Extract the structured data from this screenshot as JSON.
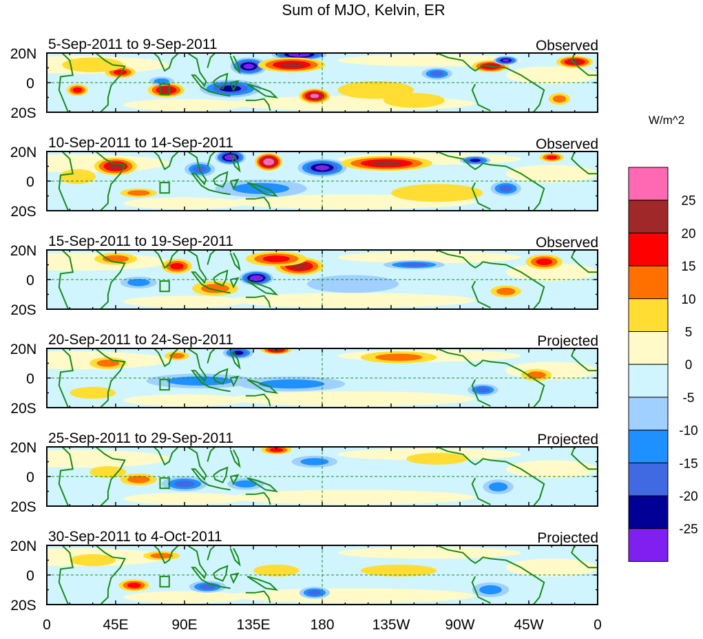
{
  "chart_data": {
    "type": "heatmap",
    "title": "Sum of MJO, Kelvin, ER",
    "colorbar": {
      "unit_label": "W/m^2",
      "tick_labels": [
        "25",
        "20",
        "15",
        "10",
        "5",
        "0",
        "-5",
        "-10",
        "-15",
        "-20",
        "-25"
      ],
      "colors": [
        "#ff69b4",
        "#a02828",
        "#ff0000",
        "#ff7000",
        "#ffdd33",
        "#fffac8",
        "#d0f5ff",
        "#a0d0ff",
        "#1e90ff",
        "#4169e1",
        "#000096",
        "#8020f0"
      ]
    },
    "x_ticks": [
      "0",
      "45E",
      "90E",
      "135E",
      "180",
      "135W",
      "90W",
      "45W",
      "0"
    ],
    "y_ticks": [
      "20N",
      "0",
      "20S"
    ],
    "lon_range": [
      0,
      360
    ],
    "lat_range": [
      -20,
      20
    ],
    "reference_box": {
      "lon": [
        74,
        80
      ],
      "lat": [
        -8,
        -1
      ]
    },
    "panels": [
      {
        "dates": "5-Sep-2011 to 9-Sep-2011",
        "kind": "Observed",
        "anomalies": [
          [
            165,
            19,
            18,
            4,
            -28
          ],
          [
            132,
            11,
            12,
            6,
            -24
          ],
          [
            160,
            12,
            22,
            5,
            18
          ],
          [
            78,
            -5,
            12,
            5,
            17
          ],
          [
            48,
            7,
            10,
            4,
            12
          ],
          [
            175,
            -9,
            10,
            5,
            22
          ],
          [
            20,
            -5,
            7,
            4,
            11
          ],
          [
            290,
            11,
            12,
            4,
            16
          ],
          [
            345,
            14,
            12,
            4,
            17
          ],
          [
            120,
            -4,
            20,
            6,
            -16
          ],
          [
            335,
            -11,
            7,
            4,
            10
          ],
          [
            255,
            6,
            10,
            4,
            -12
          ],
          [
            300,
            15,
            8,
            3,
            -24
          ],
          [
            75,
            1,
            8,
            3,
            -8
          ],
          [
            215,
            -5,
            25,
            6,
            4
          ],
          [
            30,
            12,
            20,
            5,
            4
          ],
          [
            240,
            -12,
            20,
            5,
            4
          ]
        ]
      },
      {
        "dates": "10-Sep-2011 to 14-Sep-2011",
        "kind": "Observed",
        "anomalies": [
          [
            145,
            13,
            9,
            6,
            28
          ],
          [
            180,
            9,
            16,
            6,
            -23
          ],
          [
            120,
            16,
            10,
            5,
            -26
          ],
          [
            45,
            10,
            14,
            6,
            17
          ],
          [
            222,
            12,
            30,
            5,
            16
          ],
          [
            330,
            16,
            8,
            3,
            14
          ],
          [
            100,
            8,
            10,
            5,
            -12
          ],
          [
            300,
            -5,
            10,
            5,
            -12
          ],
          [
            60,
            -8,
            12,
            3,
            10
          ],
          [
            140,
            -5,
            30,
            6,
            -8
          ],
          [
            280,
            14,
            10,
            3,
            -18
          ],
          [
            20,
            3,
            12,
            5,
            5
          ],
          [
            255,
            -8,
            30,
            6,
            4
          ]
        ]
      },
      {
        "dates": "15-Sep-2011 to 19-Sep-2011",
        "kind": "Observed",
        "anomalies": [
          [
            137,
            1,
            11,
            5,
            -28
          ],
          [
            165,
            9,
            16,
            6,
            18
          ],
          [
            150,
            14,
            20,
            5,
            14
          ],
          [
            85,
            9,
            10,
            5,
            12
          ],
          [
            325,
            12,
            12,
            5,
            15
          ],
          [
            240,
            10,
            20,
            3,
            -12
          ],
          [
            60,
            -2,
            12,
            4,
            -8
          ],
          [
            110,
            -6,
            15,
            5,
            10
          ],
          [
            300,
            -8,
            10,
            4,
            8
          ],
          [
            45,
            14,
            14,
            4,
            6
          ],
          [
            200,
            -3,
            30,
            6,
            -5
          ]
        ]
      },
      {
        "dates": "20-Sep-2011 to 24-Sep-2011",
        "kind": "Projected",
        "anomalies": [
          [
            150,
            19,
            10,
            3,
            18
          ],
          [
            125,
            17,
            10,
            4,
            -18
          ],
          [
            100,
            -2,
            35,
            5,
            -10
          ],
          [
            85,
            15,
            8,
            3,
            10
          ],
          [
            40,
            10,
            12,
            4,
            6
          ],
          [
            160,
            -4,
            35,
            5,
            -7
          ],
          [
            285,
            -8,
            10,
            4,
            -12
          ],
          [
            230,
            14,
            25,
            4,
            6
          ],
          [
            320,
            2,
            10,
            4,
            6
          ],
          [
            30,
            -10,
            15,
            4,
            5
          ]
        ]
      },
      {
        "dates": "25-Sep-2011 to 29-Sep-2011",
        "kind": "Projected",
        "anomalies": [
          [
            150,
            18,
            10,
            3,
            12
          ],
          [
            90,
            -5,
            15,
            5,
            -13
          ],
          [
            130,
            -5,
            12,
            4,
            -10
          ],
          [
            60,
            -2,
            12,
            4,
            9
          ],
          [
            175,
            10,
            15,
            4,
            -8
          ],
          [
            295,
            -7,
            10,
            5,
            -9
          ],
          [
            255,
            12,
            20,
            4,
            5
          ],
          [
            40,
            3,
            12,
            4,
            5
          ]
        ]
      },
      {
        "dates": "30-Sep-2011 to 4-Oct-2011",
        "kind": "Projected",
        "anomalies": [
          [
            175,
            -12,
            10,
            4,
            -15
          ],
          [
            105,
            -8,
            12,
            4,
            -12
          ],
          [
            57,
            -7,
            10,
            4,
            12
          ],
          [
            75,
            13,
            12,
            3,
            8
          ],
          [
            150,
            3,
            15,
            4,
            5
          ],
          [
            290,
            -10,
            12,
            5,
            -8
          ],
          [
            230,
            3,
            25,
            4,
            4
          ],
          [
            30,
            10,
            15,
            4,
            5
          ]
        ]
      }
    ]
  }
}
